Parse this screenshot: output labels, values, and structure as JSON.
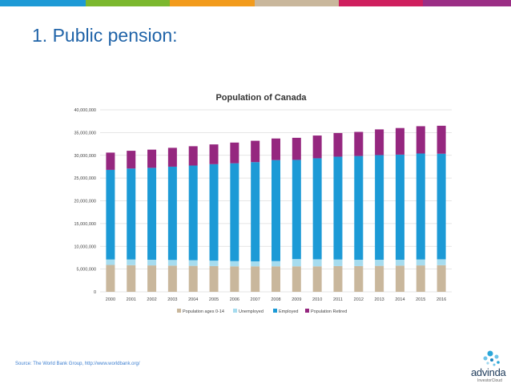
{
  "slide": {
    "title": "1. Public pension:",
    "source": "Source: The World Bank Group,  http://www.worldbank.org/",
    "logo_text": "advinda",
    "logo_subtext": "InvestorCloud",
    "top_bar_colors": [
      "#1e9ad6",
      "#7cb82f",
      "#f29b1d",
      "#c9b79c",
      "#cf1f5e",
      "#9b2e85"
    ]
  },
  "chart_data": {
    "type": "bar",
    "stacked": true,
    "title": "Population of Canada",
    "categories": [
      "2000",
      "2001",
      "2002",
      "2003",
      "2004",
      "2005",
      "2006",
      "2007",
      "2008",
      "2009",
      "2010",
      "2011",
      "2012",
      "2013",
      "2014",
      "2015",
      "2016"
    ],
    "series": [
      {
        "name": "Population ages 0-14",
        "color": "#c9b79c",
        "values": [
          5900000,
          5850000,
          5800000,
          5750000,
          5700000,
          5650000,
          5600000,
          5600000,
          5600000,
          5600000,
          5600000,
          5650000,
          5650000,
          5700000,
          5750000,
          5800000,
          5850000
        ]
      },
      {
        "name": "Unemployed",
        "color": "#a6dcef",
        "values": [
          1200000,
          1250000,
          1250000,
          1250000,
          1250000,
          1200000,
          1150000,
          1100000,
          1150000,
          1600000,
          1550000,
          1450000,
          1400000,
          1350000,
          1300000,
          1300000,
          1300000
        ]
      },
      {
        "name": "Employed",
        "color": "#1c9ad6",
        "values": [
          19700000,
          20000000,
          20200000,
          20500000,
          20800000,
          21200000,
          21500000,
          21800000,
          22200000,
          21800000,
          22200000,
          22600000,
          22800000,
          23000000,
          23100000,
          23300000,
          23200000
        ]
      },
      {
        "name": "Population Retired",
        "color": "#95277f",
        "values": [
          3800000,
          3900000,
          4000000,
          4150000,
          4250000,
          4350000,
          4550000,
          4700000,
          4750000,
          4850000,
          5000000,
          5200000,
          5300000,
          5650000,
          5850000,
          6000000,
          6150000
        ]
      }
    ],
    "y_ticks": [
      "0",
      "5,000,000",
      "10,000,000",
      "15,000,000",
      "20,000,000",
      "25,000,000",
      "30,000,000",
      "35,000,000",
      "40,000,000"
    ],
    "ylim": [
      0,
      40000000
    ],
    "grid": true,
    "legend_position": "bottom"
  }
}
